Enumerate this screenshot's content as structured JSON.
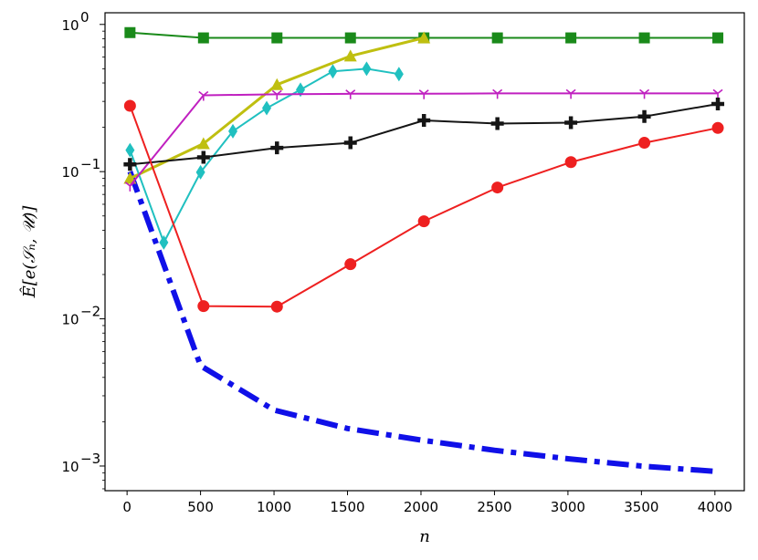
{
  "chart_data": {
    "type": "line",
    "title": "",
    "xlabel": "n",
    "ylabel": "Ê[e(𝒮ₙ, 𝒰)]",
    "xlim": [
      -150,
      4200
    ],
    "ylim": [
      0.00068,
      1.2
    ],
    "yscale": "log",
    "grid": false,
    "legend": "none",
    "x_ticks": [
      0,
      500,
      1000,
      1500,
      2000,
      2500,
      3000,
      3500,
      4000
    ],
    "x_tick_labels": [
      "0",
      "500",
      "1000",
      "1500",
      "2000",
      "2500",
      "3000",
      "3500",
      "4000"
    ],
    "y_ticks": [
      0.001,
      0.01,
      0.1,
      1
    ],
    "y_tick_labels": [
      "10",
      "10",
      "10",
      "10"
    ],
    "y_tick_exponents": [
      "−3",
      "−2",
      "−1",
      "0"
    ],
    "series": [
      {
        "color": "#1010e8",
        "marker": "none",
        "linestyle": "dashdot",
        "width": 6,
        "x": [
          20,
          500,
          1000,
          1500,
          2000,
          2500,
          3000,
          3500,
          4000
        ],
        "y": [
          0.1,
          0.0048,
          0.0024,
          0.0018,
          0.0015,
          0.00128,
          0.00112,
          0.001,
          0.00092
        ]
      },
      {
        "color": "#1a8a1a",
        "marker": "square",
        "linestyle": "solid",
        "width": 2,
        "x": [
          20,
          520,
          1020,
          1520,
          2020,
          2520,
          3020,
          3520,
          4020
        ],
        "y": [
          0.88,
          0.81,
          0.81,
          0.81,
          0.81,
          0.81,
          0.81,
          0.81,
          0.81
        ]
      },
      {
        "color": "#bfbf10",
        "marker": "triangle",
        "linestyle": "solid",
        "width": 3,
        "x": [
          20,
          520,
          1020,
          1520,
          2020
        ],
        "y": [
          0.09,
          0.155,
          0.39,
          0.61,
          0.81
        ]
      },
      {
        "color": "#20c0c0",
        "marker": "diamond",
        "linestyle": "solid",
        "width": 2,
        "x": [
          20,
          250,
          500,
          720,
          950,
          1180,
          1400,
          1630,
          1850
        ],
        "y": [
          0.14,
          0.033,
          0.099,
          0.188,
          0.27,
          0.36,
          0.48,
          0.5,
          0.46
        ]
      },
      {
        "color": "#c020c0",
        "marker": "tri_down",
        "linestyle": "solid",
        "width": 2,
        "x": [
          20,
          520,
          1020,
          1520,
          2020,
          2520,
          3020,
          3520,
          4020
        ],
        "y": [
          0.08,
          0.33,
          0.335,
          0.338,
          0.338,
          0.34,
          0.34,
          0.34,
          0.34
        ]
      },
      {
        "color": "#151515",
        "marker": "plus",
        "linestyle": "solid",
        "width": 2,
        "x": [
          20,
          520,
          1020,
          1520,
          2020,
          2520,
          3020,
          3520,
          4020
        ],
        "y": [
          0.112,
          0.125,
          0.145,
          0.157,
          0.223,
          0.212,
          0.215,
          0.237,
          0.288
        ]
      },
      {
        "color": "#ee2020",
        "marker": "circle",
        "linestyle": "solid",
        "width": 2,
        "x": [
          20,
          520,
          1020,
          1520,
          2020,
          2520,
          3020,
          3520,
          4020
        ],
        "y": [
          0.28,
          0.0122,
          0.0121,
          0.0235,
          0.046,
          0.078,
          0.116,
          0.157,
          0.198
        ]
      }
    ]
  }
}
